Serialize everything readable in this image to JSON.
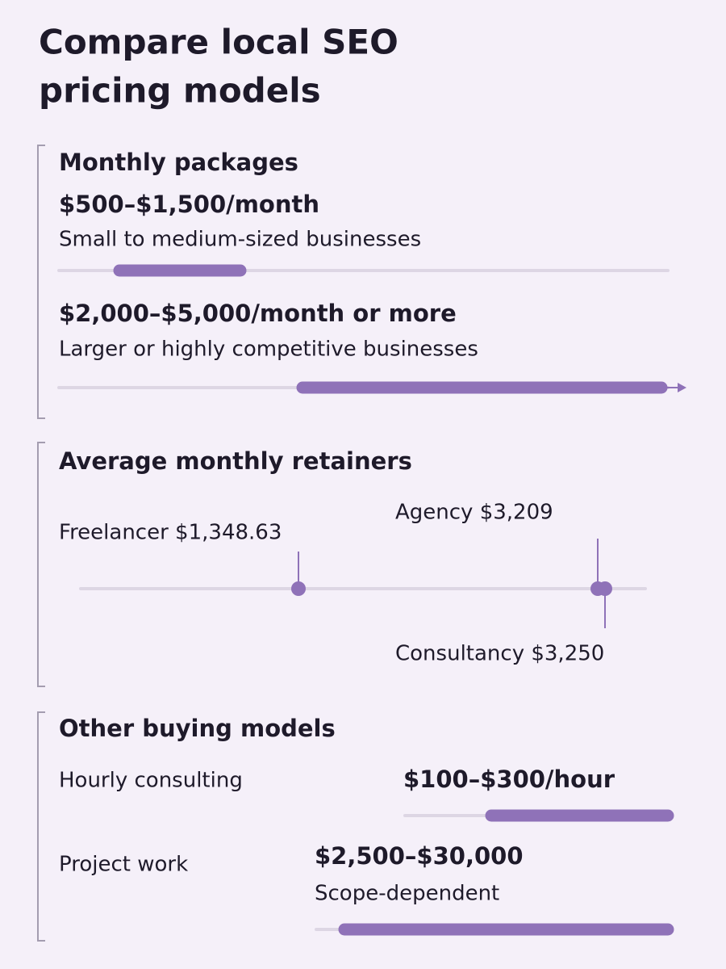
{
  "header": {
    "title_lines": [
      "Compare local SEO",
      "pricing models"
    ]
  },
  "sections": [
    {
      "title": "Monthly packages",
      "items": [
        {
          "price": "$500–$1,500/month",
          "description": "Small to medium-sized businesses"
        },
        {
          "price": "$2,000–$5,000/month or more",
          "description": "Larger or highly competitive businesses"
        }
      ]
    },
    {
      "title": "Average monthly retainers",
      "items": [
        {
          "label": "Freelancer $1,348.63"
        },
        {
          "label": "Agency $3,209"
        },
        {
          "label": "Consultancy $3,250"
        }
      ]
    },
    {
      "title": "Other buying models",
      "items": [
        {
          "label": "Hourly consulting",
          "price": "$100–$300/hour"
        },
        {
          "label": "Project work",
          "price": "$2,500–$30,000",
          "description": "Scope-dependent"
        }
      ]
    }
  ]
}
